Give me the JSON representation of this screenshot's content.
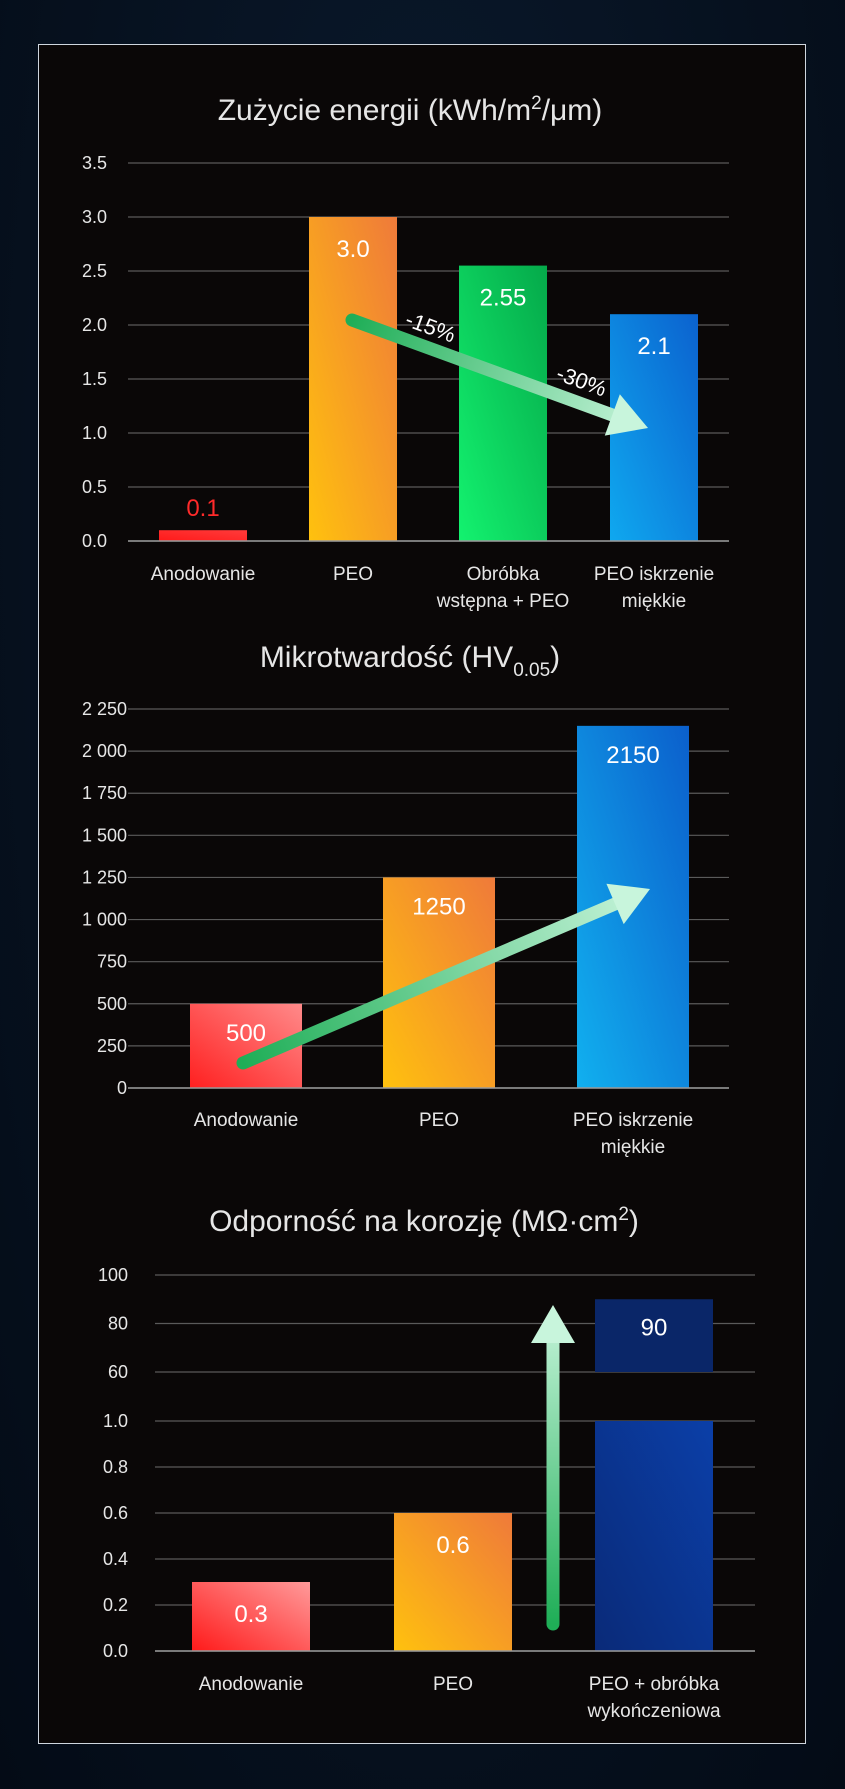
{
  "colors": {
    "background": "#06111f",
    "panel": "#0a0707",
    "frame": "#cfd6de",
    "grid": "#5a5a5a",
    "text": "#e6e6e6",
    "arrow_green": "#1fae57",
    "arrow_light": "#c8f5dc"
  },
  "chart_data": [
    {
      "type": "bar",
      "title_main": "Zużycie energii (kWh/m",
      "title_sup": "2",
      "title_end": "/μm)",
      "categories": [
        [
          "Anodowanie"
        ],
        [
          "PEO"
        ],
        [
          "Obróbka",
          "wstępna + PEO"
        ],
        [
          "PEO iskrzenie",
          "miękkie"
        ]
      ],
      "values": [
        0.1,
        3.0,
        2.55,
        2.1
      ],
      "value_labels": [
        "0.1",
        "3.0",
        "2.55",
        "2.1"
      ],
      "bar_colors": [
        [
          "#ff1a1a",
          "#ff3b3b"
        ],
        [
          "#ffc10e",
          "#ef7a3a"
        ],
        [
          "#13f26f",
          "#05a94a"
        ],
        [
          "#0fa8ef",
          "#0b62cf"
        ]
      ],
      "ylim": [
        0,
        3.5
      ],
      "yticks": [
        "0.0",
        "0.5",
        "1.0",
        "1.5",
        "2.0",
        "2.5",
        "3.0",
        "3.5"
      ],
      "annotations": [
        "-15%",
        "-30%"
      ],
      "grid": true
    },
    {
      "type": "bar",
      "title_main": "Mikrotwardość (HV",
      "title_sub": "0.05",
      "title_end": ")",
      "categories": [
        [
          "Anodowanie"
        ],
        [
          "PEO"
        ],
        [
          "PEO iskrzenie",
          "miękkie"
        ]
      ],
      "values": [
        500,
        1250,
        2150
      ],
      "value_labels": [
        "500",
        "1250",
        "2150"
      ],
      "bar_colors": [
        [
          "#ff2020",
          "#ff8a8a"
        ],
        [
          "#ffc10e",
          "#ef7a3a"
        ],
        [
          "#11b0ef",
          "#0b5fcc"
        ]
      ],
      "ylim": [
        0,
        2250
      ],
      "yticks": [
        "0",
        "250",
        "500",
        "750",
        "1 000",
        "1 250",
        "1 500",
        "1 750",
        "2 000",
        "2 250"
      ],
      "grid": true
    },
    {
      "type": "bar",
      "title_main": "Odporność na korozję (MΩ·cm",
      "title_sup": "2",
      "title_end": ")",
      "categories": [
        [
          "Anodowanie"
        ],
        [
          "PEO"
        ],
        [
          "PEO + obróbka",
          "wykończeniowa"
        ]
      ],
      "values": [
        0.3,
        0.6,
        90
      ],
      "value_labels": [
        "0.3",
        "0.6",
        "90"
      ],
      "bar_colors": [
        [
          "#ff1a1a",
          "#ff9a9a"
        ],
        [
          "#ffc10e",
          "#ef7a3a"
        ],
        [
          "#0a2a78",
          "#0b3fa8"
        ]
      ],
      "axis_break": true,
      "yticks_lower": [
        "0.0",
        "0.2",
        "0.4",
        "0.6",
        "0.8",
        "1.0"
      ],
      "ylim_lower": [
        0,
        1.0
      ],
      "yticks_upper": [
        "60",
        "80",
        "100"
      ],
      "ylim_upper": [
        60,
        100
      ],
      "grid": true
    }
  ]
}
